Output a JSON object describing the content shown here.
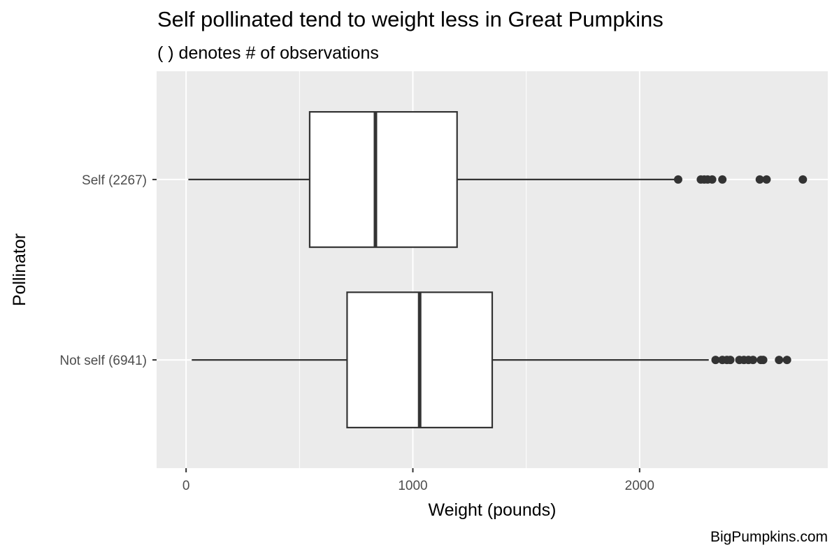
{
  "title": "Self pollinated tend to weight less in Great Pumpkins",
  "subtitle": "( ) denotes # of observations",
  "caption": "BigPumpkins.com",
  "colors": {
    "panel": "#ebebeb",
    "grid": "#ffffff",
    "box_fill": "#ffffff",
    "line": "#333333",
    "outlier": "#333333",
    "tick_text": "#4d4d4d"
  },
  "chart_data": {
    "type": "boxplot",
    "orientation": "horizontal",
    "xlabel": "Weight (pounds)",
    "ylabel": "Pollinator",
    "xlim": [
      -130,
      2830
    ],
    "x_ticks": [
      0,
      1000,
      2000
    ],
    "x_tick_labels": [
      "0",
      "1000",
      "2000"
    ],
    "grid": true,
    "categories": [
      "Self (2267)",
      "Not self (6941)"
    ],
    "boxes": [
      {
        "label": "Self (2267)",
        "whisker_low": 10,
        "q1": 545,
        "median": 835,
        "q3": 1195,
        "whisker_high": 2165,
        "outliers": [
          2170,
          2270,
          2285,
          2300,
          2320,
          2365,
          2530,
          2560,
          2720
        ]
      },
      {
        "label": "Not self (6941)",
        "whisker_low": 25,
        "q1": 710,
        "median": 1030,
        "q3": 1350,
        "whisker_high": 2305,
        "outliers": [
          2335,
          2365,
          2385,
          2400,
          2440,
          2460,
          2480,
          2500,
          2535,
          2545,
          2615,
          2650
        ]
      }
    ]
  }
}
